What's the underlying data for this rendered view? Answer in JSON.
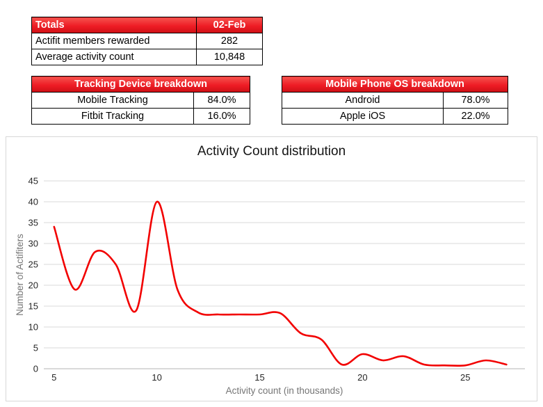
{
  "tables": {
    "totals": {
      "header": [
        "Totals",
        "02-Feb"
      ],
      "rows": [
        [
          "Actifit members rewarded",
          "282"
        ],
        [
          "Average activity count",
          "10,848"
        ]
      ]
    },
    "tracking": {
      "header": "Tracking Device breakdown",
      "rows": [
        [
          "Mobile Tracking",
          "84.0%"
        ],
        [
          "Fitbit Tracking",
          "16.0%"
        ]
      ]
    },
    "os": {
      "header": "Mobile Phone OS breakdown",
      "rows": [
        [
          "Android",
          "78.0%"
        ],
        [
          "Apple iOS",
          "22.0%"
        ]
      ]
    }
  },
  "colors": {
    "header_red_top": "#f5534e",
    "header_red_mid": "#ee1c25",
    "header_red_bottom": "#cf1015",
    "gridline": "#d9d9d9",
    "axis_line": "#b3b3b3",
    "tick_text": "#262626",
    "axis_title_text": "#757575",
    "line_red": "#f20000"
  },
  "chart_data": {
    "type": "line",
    "title": "Activity Count distribution",
    "xlabel": "Activity count (in thousands)",
    "ylabel": "Number of Actifiters",
    "x": [
      5,
      6,
      7,
      8,
      9,
      10,
      11,
      12,
      13,
      14,
      15,
      16,
      17,
      18,
      19,
      20,
      21,
      22,
      23,
      24,
      25,
      26,
      27
    ],
    "y": [
      34,
      19,
      28,
      25,
      14,
      40,
      19,
      13.5,
      13,
      13,
      13,
      13.3,
      8.5,
      7,
      1,
      3.5,
      2,
      3,
      1,
      0.8,
      0.8,
      2,
      1
    ],
    "xticks": [
      5,
      10,
      15,
      20,
      25
    ],
    "yticks": [
      0,
      5,
      10,
      15,
      20,
      25,
      30,
      35,
      40,
      45
    ],
    "xlim": [
      4.5,
      27.9
    ],
    "ylim": [
      0,
      45
    ],
    "grid": true,
    "smooth": true,
    "legend": "none",
    "line_color": "#f20000"
  }
}
